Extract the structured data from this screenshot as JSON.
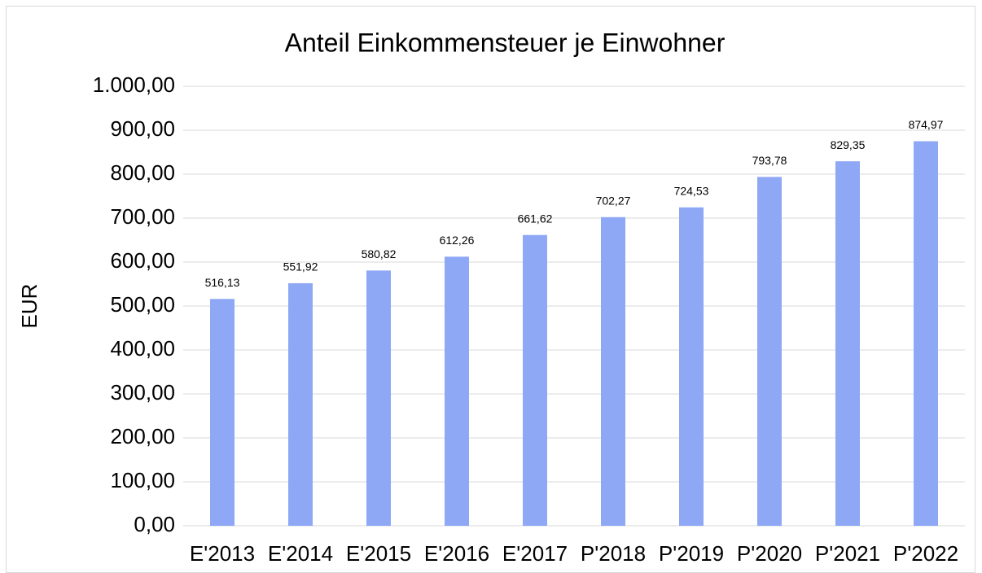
{
  "chart_data": {
    "type": "bar",
    "title": "Anteil Einkommensteuer je Einwohner",
    "y_label": "EUR",
    "categories": [
      "E'2013",
      "E'2014",
      "E'2015",
      "E'2016",
      "E'2017",
      "P'2018",
      "P'2019",
      "P'2020",
      "P'2021",
      "P'2022"
    ],
    "values": [
      516.13,
      551.92,
      580.82,
      612.26,
      661.62,
      702.27,
      724.53,
      793.78,
      829.35,
      874.97
    ],
    "value_labels": [
      "516,13",
      "551,92",
      "580,82",
      "612,26",
      "661,62",
      "702,27",
      "724,53",
      "793,78",
      "829,35",
      "874,97"
    ],
    "color": "#8ea8f6",
    "ylim": [
      0,
      1000
    ],
    "yticks": [
      {
        "value": 0,
        "label": "0,00"
      },
      {
        "value": 100,
        "label": "100,00"
      },
      {
        "value": 200,
        "label": "200,00"
      },
      {
        "value": 300,
        "label": "300,00"
      },
      {
        "value": 400,
        "label": "400,00"
      },
      {
        "value": 500,
        "label": "500,00"
      },
      {
        "value": 600,
        "label": "600,00"
      },
      {
        "value": 700,
        "label": "700,00"
      },
      {
        "value": 800,
        "label": "800,00"
      },
      {
        "value": 900,
        "label": "900,00"
      },
      {
        "value": 1000,
        "label": "1.000,00"
      }
    ],
    "grid": true
  }
}
